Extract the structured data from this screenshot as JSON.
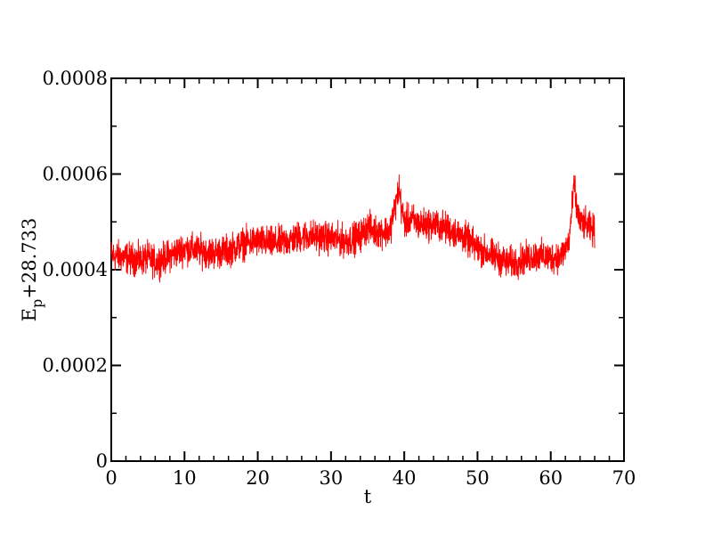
{
  "chart_data": {
    "type": "line",
    "title": "",
    "xlabel": "t",
    "ylabel": {
      "main": "E",
      "subscript": "p",
      "suffix": "+28.733"
    },
    "xlim": [
      0,
      70
    ],
    "ylim": [
      0,
      0.0008
    ],
    "x_ticks": [
      0,
      10,
      20,
      30,
      40,
      50,
      60,
      70
    ],
    "x_tick_labels": [
      "0",
      "10",
      "20",
      "30",
      "40",
      "50",
      "60",
      "70"
    ],
    "y_ticks": [
      0,
      0.0002,
      0.0004,
      0.0006,
      0.0008
    ],
    "y_tick_labels": [
      "0",
      "0.0002",
      "0.0004",
      "0.0006",
      "0.0008"
    ],
    "grid": false,
    "legend": "none",
    "series": [
      {
        "color": "#ff0000",
        "x": [
          0,
          2,
          4,
          5,
          6,
          8,
          10,
          12,
          14,
          16,
          18,
          20,
          22,
          24,
          26,
          28,
          30,
          32,
          34,
          35,
          36,
          38,
          39.3,
          39.6,
          40,
          41,
          42,
          44,
          46,
          48,
          50,
          52,
          54,
          55,
          56,
          58,
          60,
          61.5,
          62.5,
          63.2,
          63.5,
          64,
          65,
          66
        ],
        "y": [
          0.00043,
          0.000425,
          0.00042,
          0.000425,
          0.000415,
          0.00043,
          0.000445,
          0.00044,
          0.000435,
          0.00044,
          0.000455,
          0.00046,
          0.000455,
          0.00046,
          0.00047,
          0.00047,
          0.000465,
          0.00046,
          0.00047,
          0.00049,
          0.00048,
          0.00048,
          0.00057,
          0.00053,
          0.0005,
          0.000505,
          0.000495,
          0.000495,
          0.000485,
          0.00047,
          0.000445,
          0.00043,
          0.000415,
          0.000415,
          0.00042,
          0.00043,
          0.000425,
          0.00043,
          0.00046,
          0.00058,
          0.00053,
          0.0005,
          0.00049,
          0.00048
        ],
        "noise_amplitude": 2e-05
      }
    ]
  }
}
